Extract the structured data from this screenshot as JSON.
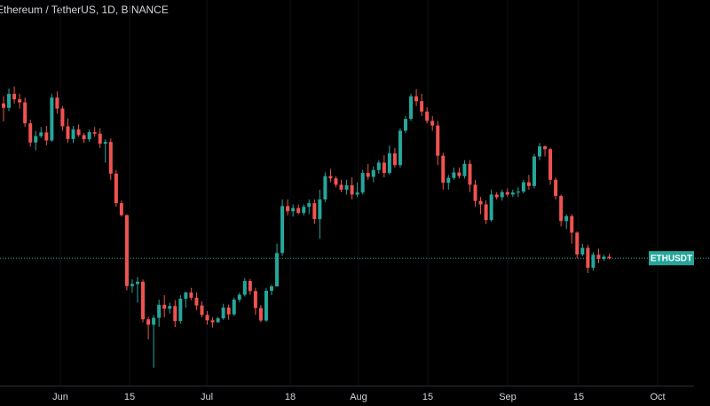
{
  "header": {
    "title": "Ethereum / TetherUS, 1D, BINANCE"
  },
  "chart_data": {
    "type": "candlestick",
    "symbol": "ETHUSDT",
    "interval": "1D",
    "exchange": "BINANCE",
    "colors": {
      "up": "#26a69a",
      "down": "#ef5350",
      "background": "#000000",
      "last_line": "#26a69a"
    },
    "x_tick_labels": [
      "Jun",
      "15",
      "Jul",
      "18",
      "Aug",
      "15",
      "Sep",
      "15",
      "Oct"
    ],
    "y_range": [
      820,
      2300
    ],
    "last_price": 1321,
    "last_badge_label": "ETHUSDT",
    "candles": [
      [
        1951,
        1980,
        1878,
        1933
      ],
      [
        1933,
        2012,
        1920,
        1990
      ],
      [
        1990,
        2020,
        1950,
        1968
      ],
      [
        1968,
        1990,
        1930,
        1955
      ],
      [
        1955,
        1975,
        1855,
        1870
      ],
      [
        1870,
        1885,
        1775,
        1792
      ],
      [
        1792,
        1840,
        1760,
        1818
      ],
      [
        1818,
        1855,
        1810,
        1833
      ],
      [
        1833,
        1860,
        1780,
        1800
      ],
      [
        1800,
        1990,
        1795,
        1975
      ],
      [
        1975,
        2000,
        1910,
        1930
      ],
      [
        1930,
        1940,
        1840,
        1858
      ],
      [
        1858,
        1890,
        1790,
        1806
      ],
      [
        1806,
        1860,
        1790,
        1845
      ],
      [
        1845,
        1865,
        1815,
        1822
      ],
      [
        1822,
        1830,
        1790,
        1805
      ],
      [
        1805,
        1845,
        1795,
        1834
      ],
      [
        1834,
        1855,
        1815,
        1828
      ],
      [
        1828,
        1850,
        1770,
        1787
      ],
      [
        1787,
        1805,
        1710,
        1794
      ],
      [
        1794,
        1808,
        1640,
        1665
      ],
      [
        1665,
        1680,
        1530,
        1545
      ],
      [
        1545,
        1556,
        1490,
        1496
      ],
      [
        1496,
        1500,
        1190,
        1207
      ],
      [
        1207,
        1235,
        1180,
        1216
      ],
      [
        1216,
        1245,
        1140,
        1225
      ],
      [
        1225,
        1234,
        1060,
        1072
      ],
      [
        1072,
        1082,
        990,
        1050
      ],
      [
        1050,
        1090,
        875,
        1078
      ],
      [
        1078,
        1152,
        1041,
        1131
      ],
      [
        1131,
        1170,
        1080,
        1115
      ],
      [
        1115,
        1140,
        1095,
        1126
      ],
      [
        1126,
        1150,
        1040,
        1065
      ],
      [
        1065,
        1170,
        1055,
        1156
      ],
      [
        1156,
        1185,
        1120,
        1181
      ],
      [
        1181,
        1200,
        1150,
        1160
      ],
      [
        1160,
        1182,
        1110,
        1128
      ],
      [
        1128,
        1145,
        1080,
        1090
      ],
      [
        1090,
        1105,
        1050,
        1068
      ],
      [
        1068,
        1080,
        1038,
        1060
      ],
      [
        1060,
        1082,
        1058,
        1076
      ],
      [
        1076,
        1135,
        1070,
        1120
      ],
      [
        1120,
        1132,
        1070,
        1092
      ],
      [
        1092,
        1160,
        1085,
        1152
      ],
      [
        1152,
        1180,
        1142,
        1172
      ],
      [
        1172,
        1240,
        1165,
        1228
      ],
      [
        1228,
        1236,
        1172,
        1187
      ],
      [
        1187,
        1200,
        1090,
        1118
      ],
      [
        1118,
        1130,
        1060,
        1067
      ],
      [
        1067,
        1200,
        1062,
        1188
      ],
      [
        1188,
        1213,
        1170,
        1206
      ],
      [
        1206,
        1380,
        1205,
        1342
      ],
      [
        1342,
        1560,
        1330,
        1533
      ],
      [
        1533,
        1560,
        1495,
        1512
      ],
      [
        1512,
        1540,
        1490,
        1525
      ],
      [
        1525,
        1540,
        1500,
        1505
      ],
      [
        1505,
        1540,
        1495,
        1530
      ],
      [
        1530,
        1560,
        1500,
        1545
      ],
      [
        1545,
        1560,
        1460,
        1480
      ],
      [
        1480,
        1600,
        1400,
        1560
      ],
      [
        1560,
        1670,
        1550,
        1655
      ],
      [
        1655,
        1685,
        1630,
        1646
      ],
      [
        1646,
        1655,
        1610,
        1620
      ],
      [
        1620,
        1640,
        1590,
        1600
      ],
      [
        1600,
        1640,
        1580,
        1618
      ],
      [
        1618,
        1650,
        1560,
        1580
      ],
      [
        1580,
        1630,
        1570,
        1588
      ],
      [
        1588,
        1680,
        1580,
        1668
      ],
      [
        1668,
        1705,
        1640,
        1652
      ],
      [
        1652,
        1695,
        1630,
        1680
      ],
      [
        1680,
        1720,
        1665,
        1710
      ],
      [
        1710,
        1740,
        1650,
        1668
      ],
      [
        1668,
        1780,
        1660,
        1748
      ],
      [
        1748,
        1770,
        1690,
        1700
      ],
      [
        1700,
        1850,
        1690,
        1840
      ],
      [
        1840,
        1900,
        1830,
        1888
      ],
      [
        1888,
        1990,
        1880,
        1980
      ],
      [
        1980,
        2010,
        1940,
        1960
      ],
      [
        1960,
        1990,
        1900,
        1918
      ],
      [
        1918,
        1935,
        1870,
        1880
      ],
      [
        1880,
        1900,
        1840,
        1861
      ],
      [
        1861,
        1880,
        1700,
        1738
      ],
      [
        1738,
        1750,
        1600,
        1628
      ],
      [
        1628,
        1660,
        1600,
        1648
      ],
      [
        1648,
        1690,
        1640,
        1670
      ],
      [
        1670,
        1690,
        1645,
        1655
      ],
      [
        1655,
        1720,
        1645,
        1705
      ],
      [
        1705,
        1720,
        1590,
        1620
      ],
      [
        1620,
        1640,
        1530,
        1554
      ],
      [
        1554,
        1570,
        1500,
        1540
      ],
      [
        1540,
        1556,
        1460,
        1476
      ],
      [
        1476,
        1600,
        1470,
        1580
      ],
      [
        1580,
        1590,
        1560,
        1569
      ],
      [
        1569,
        1600,
        1555,
        1590
      ],
      [
        1590,
        1605,
        1570,
        1580
      ],
      [
        1580,
        1600,
        1570,
        1588
      ],
      [
        1588,
        1610,
        1570,
        1592
      ],
      [
        1592,
        1640,
        1585,
        1630
      ],
      [
        1630,
        1660,
        1600,
        1615
      ],
      [
        1615,
        1745,
        1605,
        1735
      ],
      [
        1735,
        1790,
        1720,
        1776
      ],
      [
        1776,
        1780,
        1735,
        1765
      ],
      [
        1765,
        1770,
        1620,
        1640
      ],
      [
        1640,
        1650,
        1560,
        1574
      ],
      [
        1574,
        1580,
        1450,
        1472
      ],
      [
        1472,
        1500,
        1440,
        1492
      ],
      [
        1492,
        1500,
        1380,
        1425
      ],
      [
        1425,
        1430,
        1320,
        1336
      ],
      [
        1336,
        1380,
        1330,
        1363
      ],
      [
        1363,
        1375,
        1260,
        1282
      ],
      [
        1282,
        1345,
        1270,
        1335
      ],
      [
        1335,
        1360,
        1300,
        1318
      ],
      [
        1318,
        1335,
        1310,
        1327
      ],
      [
        1327,
        1338,
        1316,
        1321
      ]
    ]
  }
}
